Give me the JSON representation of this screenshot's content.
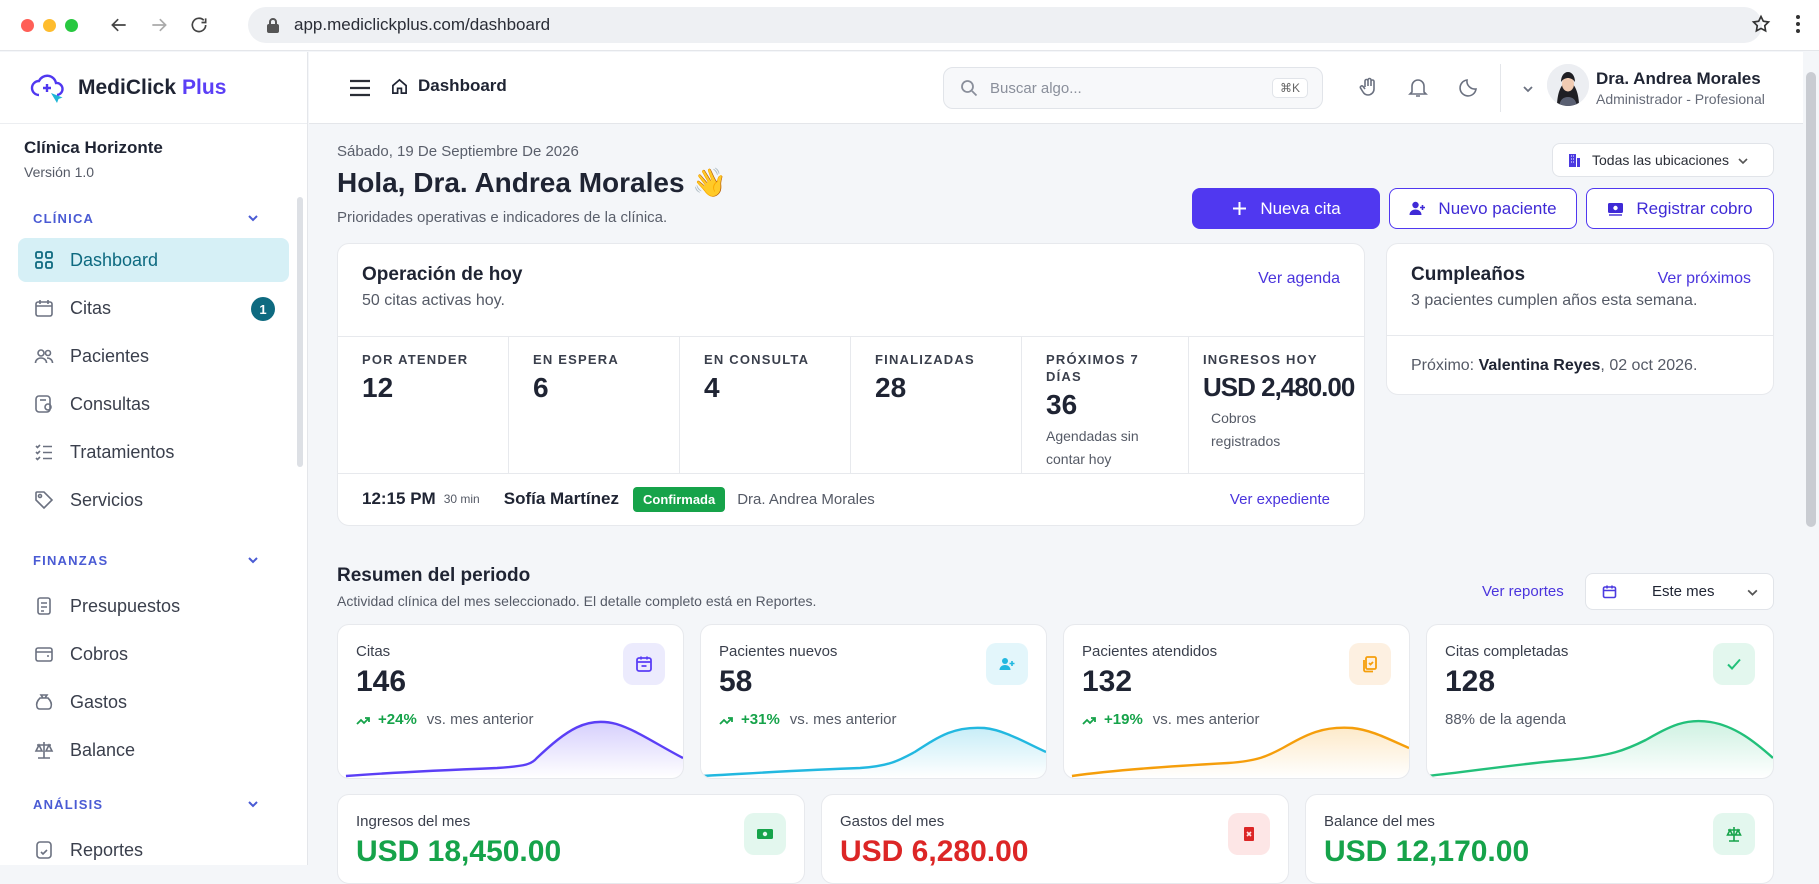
{
  "browser": {
    "url": "app.mediclickplus.com/dashboard"
  },
  "colors": {
    "accent": "#5038f0",
    "teal": "#0e6a80",
    "green": "#16a34a",
    "red": "#dc2626"
  },
  "brand": {
    "name": "MediClick",
    "plus": "Plus"
  },
  "clinic": {
    "name": "Clínica Horizonte",
    "version": "Versión 1.0"
  },
  "sidebar": {
    "sections": [
      {
        "label": "CLÍNICA"
      },
      {
        "label": "FINANZAS"
      },
      {
        "label": "ANÁLISIS"
      }
    ],
    "items": [
      {
        "label": "Dashboard",
        "icon": "grid-icon"
      },
      {
        "label": "Citas",
        "icon": "calendar-icon",
        "badge": "1"
      },
      {
        "label": "Pacientes",
        "icon": "users-icon"
      },
      {
        "label": "Consultas",
        "icon": "consult-icon"
      },
      {
        "label": "Tratamientos",
        "icon": "list-check-icon"
      },
      {
        "label": "Servicios",
        "icon": "tag-icon"
      },
      {
        "label": "Presupuestos",
        "icon": "document-icon"
      },
      {
        "label": "Cobros",
        "icon": "wallet-icon"
      },
      {
        "label": "Gastos",
        "icon": "moneybag-icon"
      },
      {
        "label": "Balance",
        "icon": "scale-icon"
      },
      {
        "label": "Reportes",
        "icon": "report-icon"
      }
    ]
  },
  "topbar": {
    "breadcrumb": "Dashboard",
    "search_placeholder": "Buscar algo...",
    "search_shortcut": "⌘K",
    "user_name": "Dra. Andrea Morales",
    "user_role": "Administrador - Profesional"
  },
  "header": {
    "date": "Sábado, 19 De Septiembre De 2026",
    "greeting": "Hola, Dra. Andrea Morales 👋",
    "subtitle": "Prioridades operativas e indicadores de la clínica.",
    "location": "Todas las ubicaciones",
    "btn_new_appt": "Nueva cita",
    "btn_new_patient": "Nuevo paciente",
    "btn_payment": "Registrar cobro"
  },
  "today": {
    "title": "Operación de hoy",
    "subtitle": "50 citas activas hoy.",
    "link": "Ver agenda",
    "stats": [
      {
        "label": "POR ATENDER",
        "value": "12",
        "note": ""
      },
      {
        "label": "EN ESPERA",
        "value": "6",
        "note": ""
      },
      {
        "label": "EN CONSULTA",
        "value": "4",
        "note": ""
      },
      {
        "label": "FINALIZADAS",
        "value": "28",
        "note": ""
      },
      {
        "label": "PRÓXIMOS 7 DÍAS",
        "value": "36",
        "note": "Agendadas sin contar hoy"
      },
      {
        "label": "INGRESOS HOY",
        "value": "USD 2,480.00",
        "note": "Cobros registrados"
      }
    ],
    "appointment": {
      "time": "12:15 PM",
      "duration": "30 min",
      "patient": "Sofía Martínez",
      "status": "Confirmada",
      "doctor": "Dra. Andrea Morales",
      "link": "Ver expediente"
    }
  },
  "birthdays": {
    "title": "Cumpleaños",
    "link": "Ver próximos",
    "subtitle": "3 pacientes cumplen años esta semana.",
    "next_label": "Próximo:",
    "next_name": "Valentina Reyes",
    "next_date": ", 02 oct 2026."
  },
  "summary": {
    "title": "Resumen del periodo",
    "subtitle": "Actividad clínica del mes seleccionado. El detalle completo está en Reportes.",
    "link": "Ver reportes",
    "period": "Este mes"
  },
  "kpis": [
    {
      "label": "Citas",
      "value": "146",
      "delta": "+24%",
      "note": "vs. mes anterior",
      "color": "#5b3ff6"
    },
    {
      "label": "Pacientes nuevos",
      "value": "58",
      "delta": "+31%",
      "note": "vs. mes anterior",
      "color": "#22b8e0"
    },
    {
      "label": "Pacientes atendidos",
      "value": "132",
      "delta": "+19%",
      "note": "vs. mes anterior",
      "color": "#f59e0b"
    },
    {
      "label": "Citas completadas",
      "value": "128",
      "delta": "",
      "note": "88% de la agenda",
      "color": "#22c07a"
    }
  ],
  "finance": [
    {
      "label": "Ingresos del mes",
      "value": "USD 18,450.00",
      "color": "#16a34a"
    },
    {
      "label": "Gastos del mes",
      "value": "USD 6,280.00",
      "color": "#dc2626"
    },
    {
      "label": "Balance del mes",
      "value": "USD 12,170.00",
      "color": "#16a34a"
    }
  ]
}
